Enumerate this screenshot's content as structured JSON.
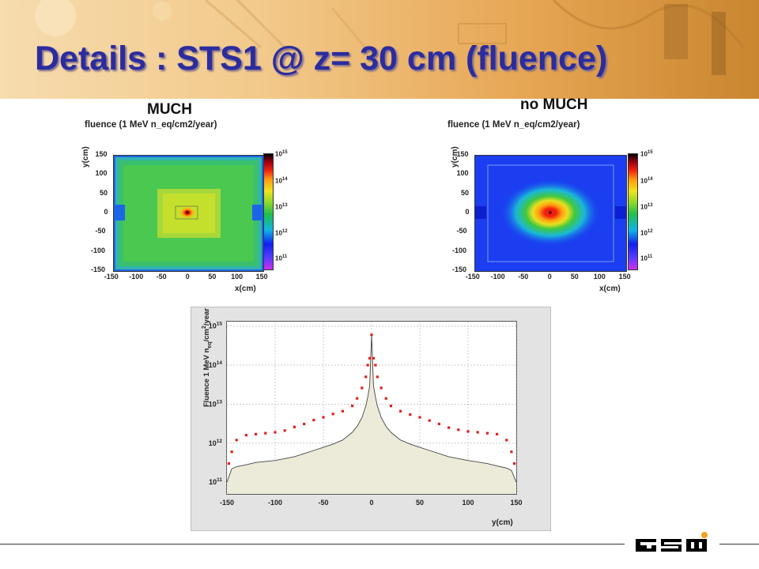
{
  "slide": {
    "title": "Details : STS1 @ z= 30 cm (fluence)"
  },
  "left_panel": {
    "label": "MUCH",
    "map_title": "fluence (1 MeV n_eq/cm2/year)",
    "xlabel": "x(cm)",
    "ylabel": "y(cm)"
  },
  "right_panel": {
    "label": "no MUCH",
    "map_title": "fluence (1 MeV n_eq/cm2/year)",
    "xlabel": "x(cm)",
    "ylabel": "y(cm)"
  },
  "logo": {
    "text": "GSI",
    "dot_color": "#f0a020"
  },
  "colors": {
    "title": "#2b2c9e",
    "red_series": "#e0201c",
    "grey_series": "#444444",
    "fill": "#ecebd9"
  },
  "chart_data": [
    {
      "type": "heatmap",
      "title": "fluence (1 MeV n_eq/cm2/year)",
      "xlabel": "x(cm)",
      "ylabel": "y(cm)",
      "xlim": [
        -150,
        150
      ],
      "ylim": [
        -150,
        150
      ],
      "x_ticks": [
        -150,
        -100,
        -50,
        0,
        50,
        100,
        150
      ],
      "y_ticks": [
        150,
        100,
        50,
        0,
        -50,
        -100,
        -150
      ],
      "colorbar": {
        "scale": "log",
        "range": [
          10000000000.0,
          1000000000000000.0
        ],
        "ticks": [
          "10^11",
          "10^12",
          "10^13",
          "10^14",
          "10^15"
        ]
      }
    },
    {
      "type": "heatmap",
      "title": "fluence (1 MeV n_eq/cm2/year)",
      "xlabel": "x(cm)",
      "ylabel": "y(cm)",
      "xlim": [
        -150,
        150
      ],
      "ylim": [
        -150,
        150
      ],
      "x_ticks": [
        -150,
        -100,
        -50,
        0,
        50,
        100,
        150
      ],
      "y_ticks": [
        150,
        100,
        50,
        0,
        -50,
        -100,
        -150
      ],
      "colorbar": {
        "scale": "log",
        "range": [
          10000000000.0,
          1000000000000000.0
        ],
        "ticks": [
          "10^11",
          "10^12",
          "10^13",
          "10^14",
          "10^15"
        ]
      }
    },
    {
      "type": "line",
      "xlabel": "y(cm)",
      "ylabel": "Fluence 1 MeV n_eq/cm^2/year",
      "xlim": [
        -150,
        150
      ],
      "ylim": [
        50000000000.0,
        1300000000000000.0
      ],
      "yscale": "log",
      "grid": true,
      "x_ticks": [
        -150,
        -100,
        -50,
        0,
        50,
        100,
        150
      ],
      "y_ticks": [
        "10^11",
        "10^12",
        "10^13",
        "10^14",
        "10^15"
      ],
      "series": [
        {
          "color": "#e0201c",
          "x": [
            -148,
            -145,
            -140,
            -130,
            -120,
            -110,
            -100,
            -90,
            -80,
            -70,
            -60,
            -50,
            -40,
            -30,
            -20,
            -15,
            -10,
            -6,
            -4,
            -2,
            0,
            2,
            4,
            6,
            10,
            15,
            20,
            30,
            40,
            50,
            60,
            70,
            80,
            90,
            100,
            110,
            120,
            130,
            140,
            145,
            148
          ],
          "y": [
            300000000000.0,
            600000000000.0,
            1200000000000.0,
            1600000000000.0,
            1700000000000.0,
            1800000000000.0,
            1900000000000.0,
            2100000000000.0,
            2600000000000.0,
            3100000000000.0,
            3900000000000.0,
            4600000000000.0,
            5600000000000.0,
            6600000000000.0,
            9000000000000.0,
            14000000000000.0,
            26000000000000.0,
            50000000000000.0,
            100000000000000.0,
            150000000000000.0,
            600000000000000.0,
            150000000000000.0,
            100000000000000.0,
            50000000000000.0,
            26000000000000.0,
            14000000000000.0,
            9000000000000.0,
            6600000000000.0,
            5400000000000.0,
            4600000000000.0,
            3800000000000.0,
            3100000000000.0,
            2500000000000.0,
            2200000000000.0,
            2000000000000.0,
            1900000000000.0,
            1800000000000.0,
            1700000000000.0,
            1200000000000.0,
            600000000000.0,
            300000000000.0
          ]
        },
        {
          "color": "#444444",
          "x": [
            -150,
            -145,
            -140,
            -130,
            -120,
            -100,
            -80,
            -60,
            -50,
            -40,
            -30,
            -20,
            -15,
            -10,
            -6,
            -4,
            -2,
            0,
            2,
            4,
            6,
            10,
            15,
            20,
            30,
            40,
            50,
            60,
            80,
            100,
            120,
            130,
            140,
            145,
            150
          ],
          "y": [
            100000000000.0,
            220000000000.0,
            250000000000.0,
            280000000000.0,
            320000000000.0,
            360000000000.0,
            450000000000.0,
            650000000000.0,
            780000000000.0,
            950000000000.0,
            1200000000000.0,
            1900000000000.0,
            2700000000000.0,
            4500000000000.0,
            9000000000000.0,
            15000000000000.0,
            30000000000000.0,
            600000000000000.0,
            30000000000000.0,
            15000000000000.0,
            9000000000000.0,
            4500000000000.0,
            2700000000000.0,
            1900000000000.0,
            1200000000000.0,
            950000000000.0,
            780000000000.0,
            650000000000.0,
            450000000000.0,
            360000000000.0,
            300000000000.0,
            260000000000.0,
            230000000000.0,
            200000000000.0,
            100000000000.0
          ]
        }
      ]
    }
  ]
}
